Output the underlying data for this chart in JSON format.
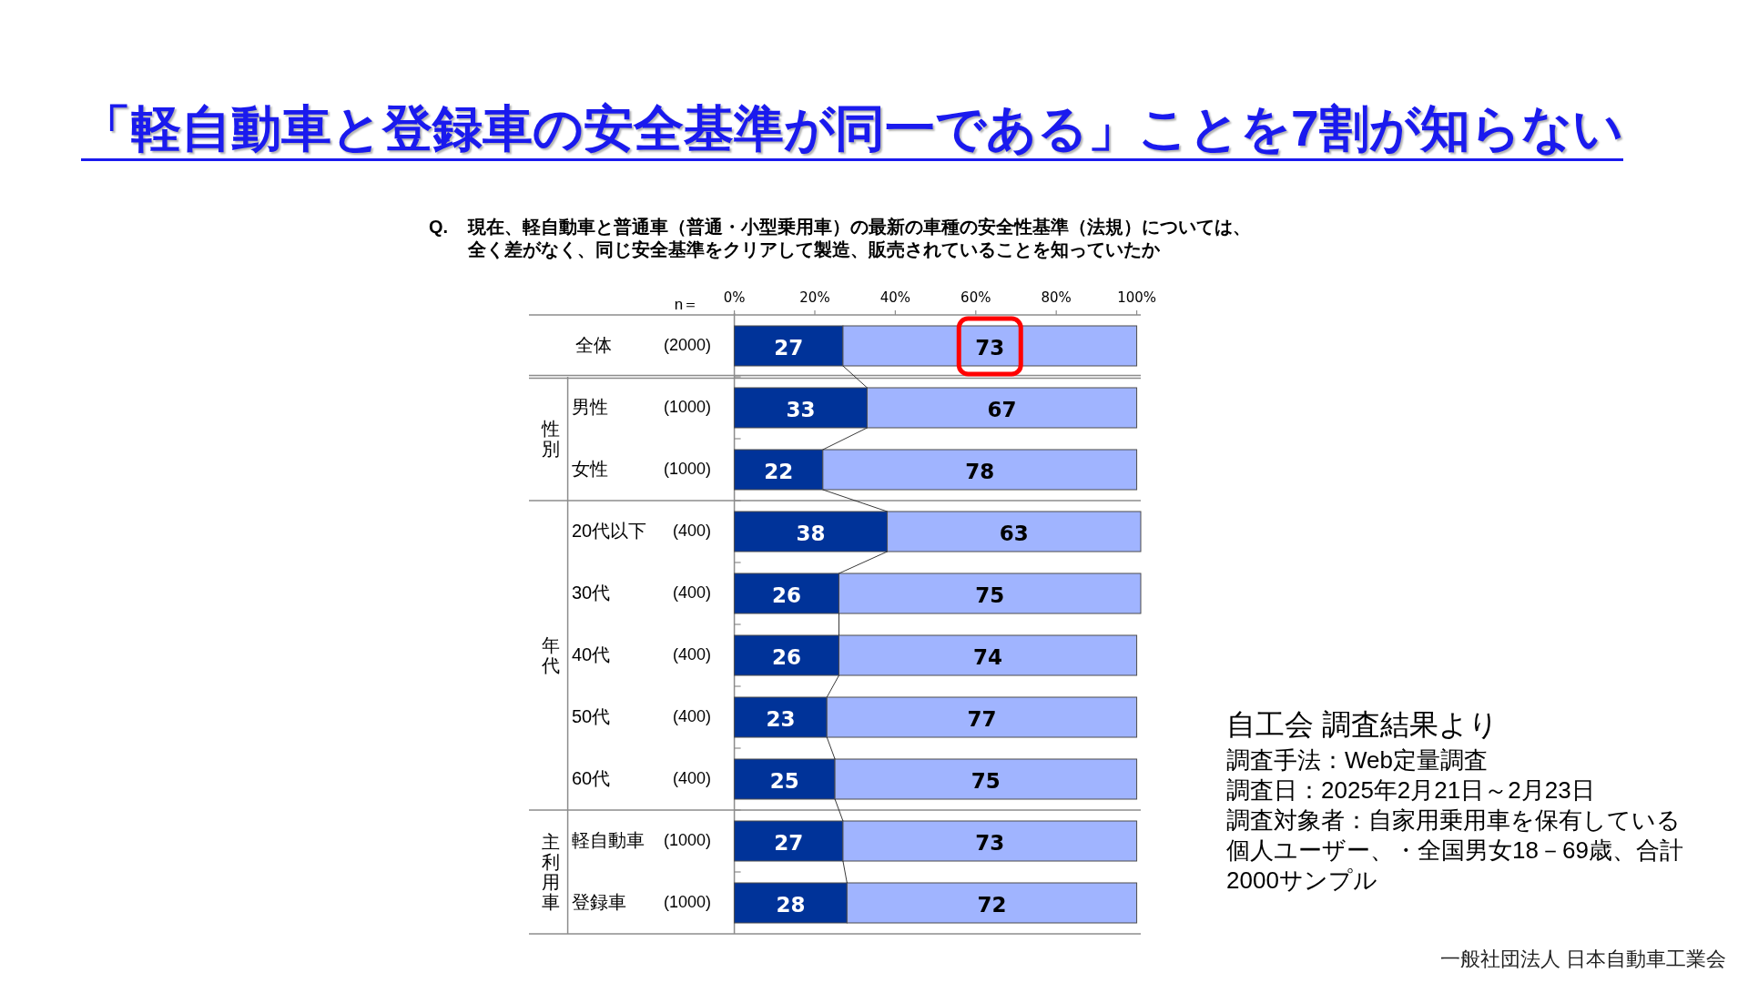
{
  "chart_data": {
    "type": "bar",
    "orientation": "horizontal",
    "stacked": true,
    "title": "「軽自動車と登録車の安全基準が同一である」ことを7割が知らない",
    "subtitle": "Q. 現在、軽自動車と普通車（普通・小型乗用車）の最新の車種の安全性基準（法規）については、全く差がなく、同じ安全基準をクリアして製造、販売されていることを知っていたか",
    "categories": [
      "全体",
      "男性",
      "女性",
      "20代以下",
      "30代",
      "40代",
      "50代",
      "60代",
      "軽自動車",
      "登録車"
    ],
    "y2_categories": [
      "(2000)",
      "(1000)",
      "(1000)",
      "(400)",
      "(400)",
      "(400)",
      "(400)",
      "(400)",
      "(1000)",
      "(1000)"
    ],
    "series": [
      {
        "color": "#003399",
        "values": [
          27,
          33,
          22,
          38,
          26,
          26,
          23,
          25,
          27,
          28
        ]
      },
      {
        "color": "#a0b4ff",
        "values": [
          73,
          67,
          78,
          63,
          75,
          74,
          77,
          75,
          73,
          72
        ]
      }
    ],
    "xlim": [
      0,
      101
    ],
    "xticks": [
      {
        "value": 0,
        "label": "0%"
      },
      {
        "value": 20,
        "label": "20%"
      },
      {
        "value": 40,
        "label": "40%"
      },
      {
        "value": 60,
        "label": "60%"
      },
      {
        "value": 80,
        "label": "80%"
      },
      {
        "value": 100,
        "label": "100%"
      }
    ],
    "data_labels": true,
    "annotations": [
      "n＝",
      "性別",
      "年代",
      "主利用車",
      "自工会 調査結果より",
      "調査手法：Web定量調査",
      "調査日：2025年2月21日～2月23日",
      "調査対象者：自家用乗用車を保有している個人ユーザー、・全国男女18－69歳、合計2000サンプル",
      "一般社団法人 日本自動車工業会"
    ]
  }
}
